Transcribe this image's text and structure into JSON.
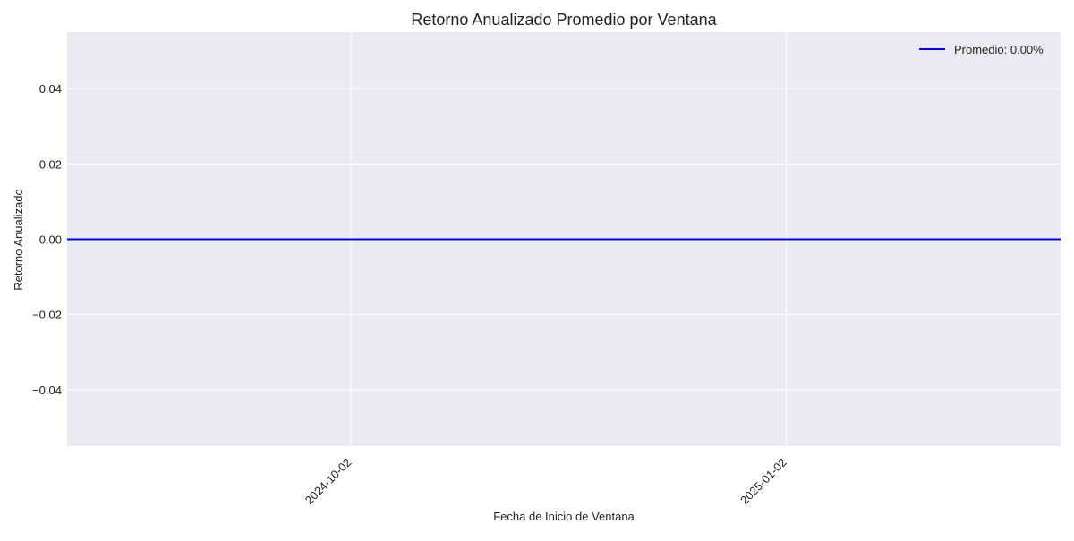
{
  "chart_data": {
    "type": "line",
    "title": "Retorno Anualizado Promedio por Ventana",
    "xlabel": "Fecha de Inicio de Ventana",
    "ylabel": "Retorno Anualizado",
    "x_tick_labels": [
      "2024-10-02",
      "2025-01-02"
    ],
    "x_ticks": [
      "2024-10-02",
      "2025-01-02"
    ],
    "xlim": [
      "2024-08-03",
      "2025-03-01"
    ],
    "y_tick_labels": [
      "0.04",
      "0.02",
      "0.00",
      "−0.02",
      "−0.04"
    ],
    "y_ticks": [
      0.04,
      0.02,
      0.0,
      -0.02,
      -0.04
    ],
    "ylim": [
      -0.055,
      0.055
    ],
    "series": [],
    "reference_lines": [
      {
        "orientation": "horizontal",
        "y": 0.0,
        "label": "Promedio: 0.00%",
        "color": "#0000ff"
      }
    ],
    "legend": {
      "position": "top-right",
      "entries": [
        "Promedio: 0.00%"
      ]
    },
    "grid": true,
    "style": {
      "plot_background": "#eaeaf2",
      "grid_color": "#ffffff"
    }
  }
}
